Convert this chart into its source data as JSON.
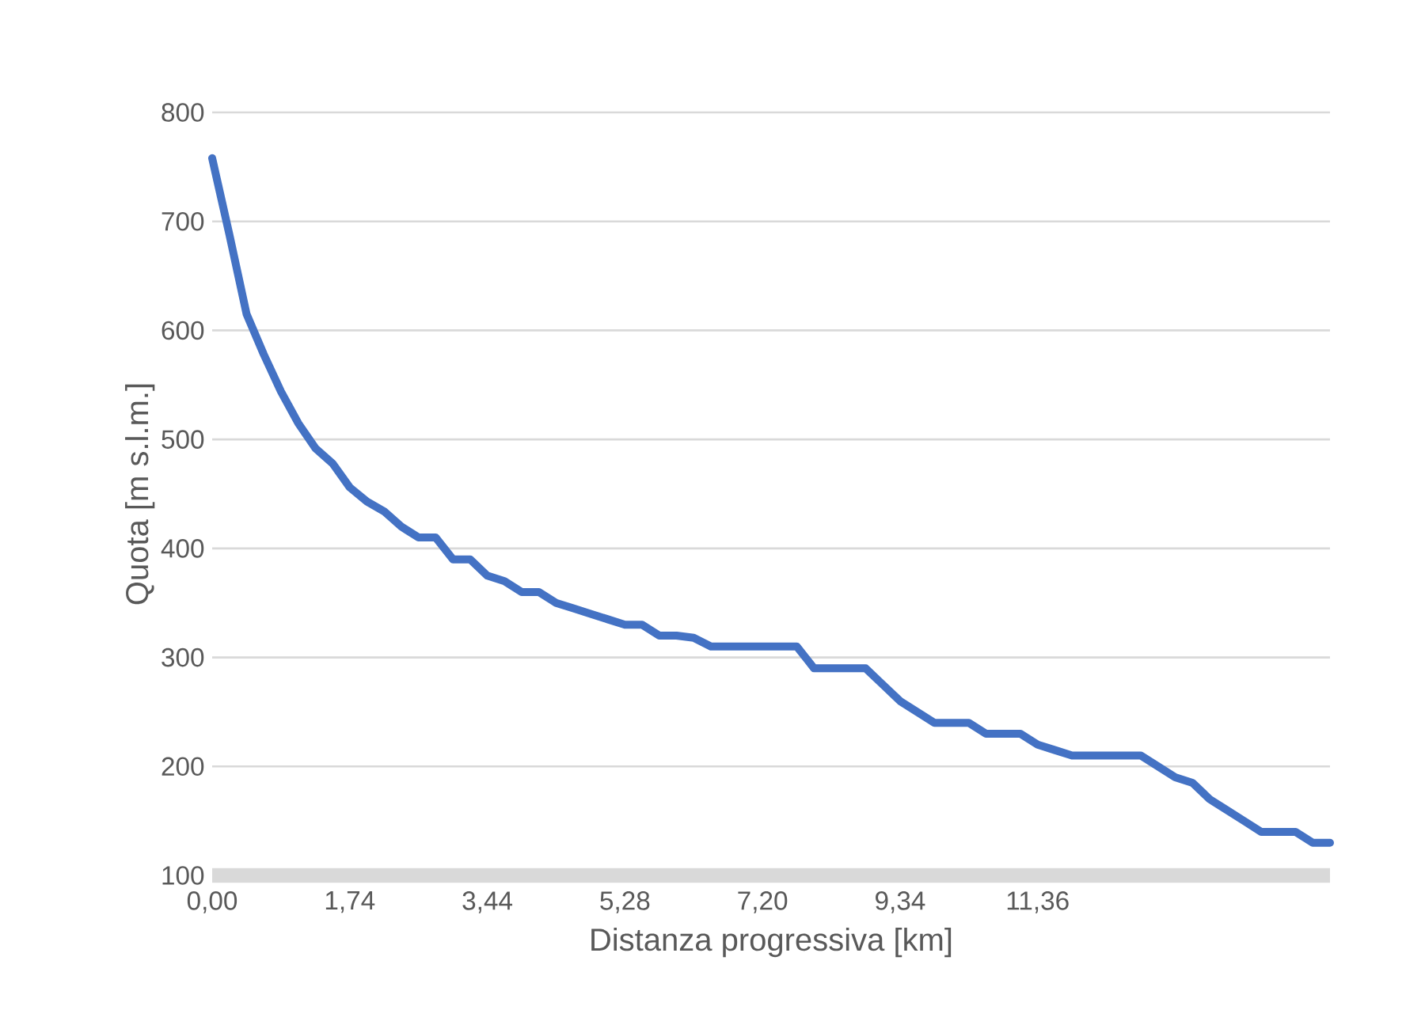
{
  "chart_data": {
    "type": "line",
    "xlabel": "Distanza progressiva [km]",
    "ylabel": "Quota [m s.l.m.]",
    "categories": [
      "0,00",
      null,
      null,
      null,
      null,
      null,
      null,
      null,
      "1,74",
      null,
      null,
      null,
      null,
      null,
      null,
      null,
      "3,44",
      null,
      null,
      null,
      null,
      null,
      null,
      null,
      "5,28",
      null,
      null,
      null,
      null,
      null,
      null,
      null,
      "7,20",
      null,
      null,
      null,
      null,
      null,
      null,
      null,
      "9,34",
      null,
      null,
      null,
      null,
      null,
      null,
      null,
      "11,36",
      null,
      null,
      null,
      null,
      null,
      null,
      null,
      null,
      null,
      null,
      null,
      null,
      null,
      null,
      null,
      null,
      null
    ],
    "values": [
      758,
      688,
      615,
      578,
      544,
      515,
      492,
      478,
      456,
      443,
      434,
      420,
      410,
      410,
      390,
      390,
      375,
      370,
      360,
      360,
      350,
      345,
      340,
      335,
      330,
      330,
      320,
      320,
      318,
      310,
      310,
      310,
      310,
      310,
      310,
      290,
      290,
      290,
      290,
      275,
      260,
      250,
      240,
      240,
      240,
      230,
      230,
      230,
      220,
      215,
      210,
      210,
      210,
      210,
      210,
      200,
      190,
      185,
      170,
      160,
      150,
      140,
      140,
      140,
      130,
      130
    ],
    "color": "#4472c4",
    "ylim": [
      100,
      800
    ],
    "yticks": [
      100,
      200,
      300,
      400,
      500,
      600,
      700,
      800
    ],
    "grid": "y"
  }
}
